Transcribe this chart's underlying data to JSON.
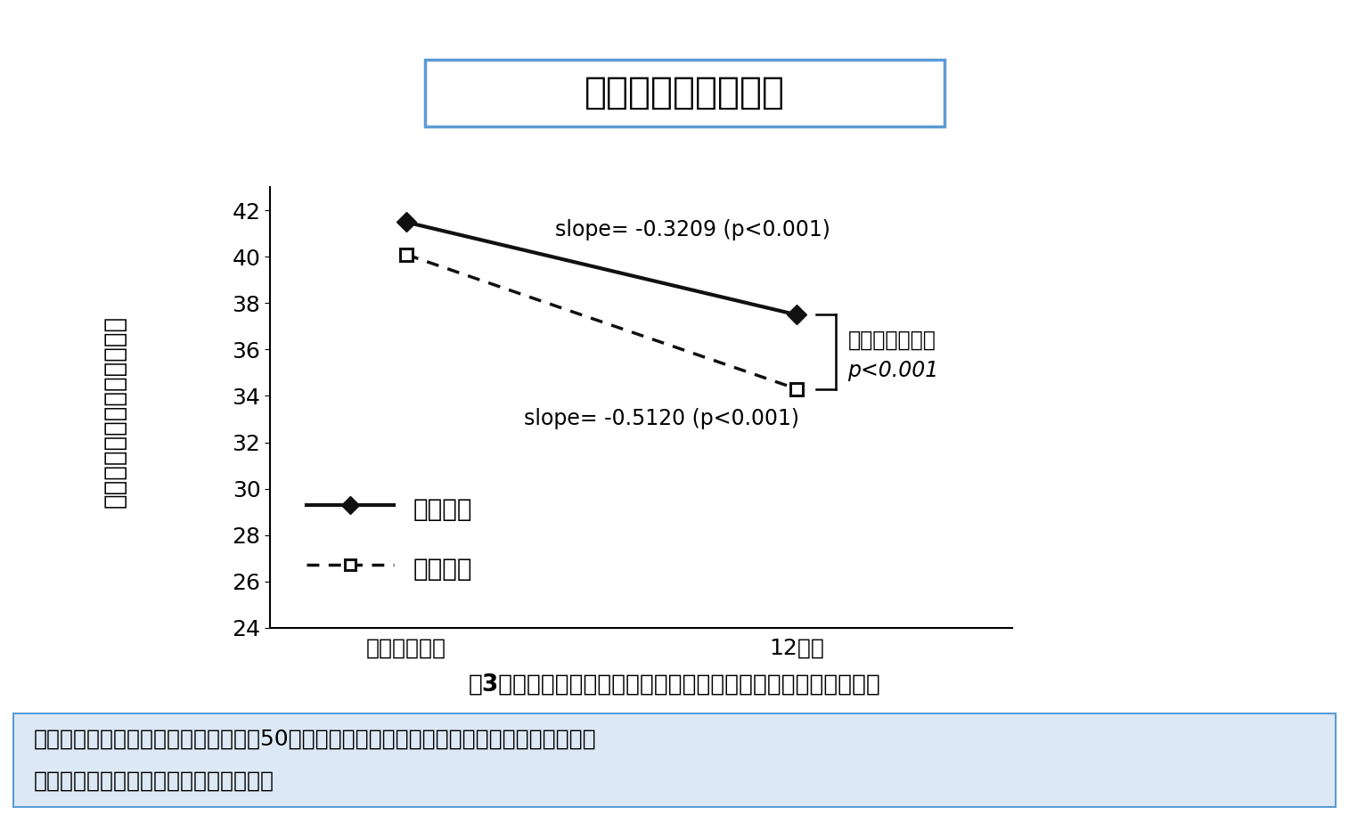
{
  "title": "情報処理のスピード",
  "ylabel": "「情報処理のスピード」得点",
  "xlabel_labels": [
    "ベースライン",
    "12年後"
  ],
  "x_values": [
    0,
    1
  ],
  "line_no_hearing_loss": [
    41.5,
    37.5
  ],
  "line_hearing_loss": [
    40.1,
    34.3
  ],
  "ylim": [
    24,
    43
  ],
  "yticks": [
    24,
    26,
    28,
    30,
    32,
    34,
    36,
    38,
    40,
    42
  ],
  "slope_no_loss_text": "slope= -0.3209 (p<0.001)",
  "slope_loss_text": "slope= -0.5120 (p<0.001)",
  "legend_no_loss": "難聴なし",
  "legend_loss": "難聴あり",
  "annotation_line1": "傾きの差の検定",
  "annotation_line2": "p<0.001",
  "caption": "図3：難聴の有無別の「情報処理のスピード」得点の縦断的変化",
  "footnote_line1": "「情報処理のスピード」は、一般的に50歳中頃以降に低下を示しますが、難聴がある場合は",
  "footnote_line2": "より急速に低下することが分かりました",
  "bg_color": "#ffffff",
  "plot_bg_color": "#ffffff",
  "footnote_bg_color": "#dce9f5",
  "line_color": "#111111",
  "title_box_color": "#5b9bd5",
  "title_fontsize": 30,
  "axis_label_fontsize": 20,
  "tick_fontsize": 18,
  "legend_fontsize": 20,
  "slope_fontsize": 17,
  "annotation_fontsize": 17,
  "caption_fontsize": 19,
  "footnote_fontsize": 18
}
